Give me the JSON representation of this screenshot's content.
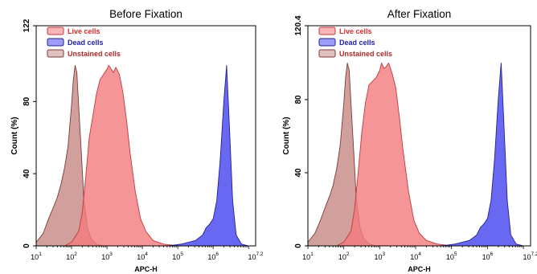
{
  "figure": {
    "colors": {
      "live": "#f47a7e",
      "live_stroke": "#c0393c",
      "dead": "#4d4df0",
      "dead_stroke": "#23238e",
      "unstained": "#c98f8c",
      "unstained_stroke": "#7b3b37",
      "legend_live_text": "#e02a2a",
      "legend_dead_text": "#2020b0",
      "legend_unstained_text": "#b02a2a"
    }
  },
  "chart_data": [
    {
      "type": "area",
      "title": "Before Fixation",
      "xlabel": "APC-H",
      "ylabel": "Count  (%)",
      "xscale": "log",
      "xlim": [
        1,
        7.2
      ],
      "ylim": [
        0,
        122
      ],
      "yticks": [
        {
          "value": 0,
          "label": "0"
        },
        {
          "value": 40,
          "label": "40"
        },
        {
          "value": 80,
          "label": "80"
        },
        {
          "value": 122,
          "label": "122"
        }
      ],
      "xticks": [
        {
          "value": 1,
          "base": "10",
          "exp": "1"
        },
        {
          "value": 2,
          "base": "10",
          "exp": "2"
        },
        {
          "value": 3,
          "base": "10",
          "exp": "3"
        },
        {
          "value": 4,
          "base": "10",
          "exp": "4"
        },
        {
          "value": 5,
          "base": "10",
          "exp": "5"
        },
        {
          "value": 6,
          "base": "10",
          "exp": "6"
        },
        {
          "value": 7.2,
          "base": "10",
          "exp": "7.2"
        }
      ],
      "legend": "top-left",
      "series": [
        {
          "name": "Unstained cells",
          "key": "unstained",
          "x": [
            1.0,
            1.2,
            1.35,
            1.5,
            1.6,
            1.7,
            1.8,
            1.9,
            2.0,
            2.05,
            2.1,
            2.15,
            2.2,
            2.28,
            2.35,
            2.45,
            2.55,
            2.7,
            2.9
          ],
          "y": [
            2,
            7,
            15,
            22,
            27,
            34,
            43,
            55,
            78,
            92,
            100,
            96,
            78,
            50,
            25,
            10,
            4,
            1,
            0
          ]
        },
        {
          "name": "Live cells",
          "key": "live",
          "x": [
            1.8,
            2.0,
            2.2,
            2.3,
            2.4,
            2.5,
            2.6,
            2.7,
            2.8,
            2.9,
            3.0,
            3.05,
            3.12,
            3.18,
            3.25,
            3.35,
            3.45,
            3.55,
            3.65,
            3.8,
            3.95,
            4.1,
            4.3,
            4.6,
            5.0
          ],
          "y": [
            0,
            2,
            8,
            18,
            38,
            60,
            72,
            84,
            92,
            95,
            98,
            100,
            98,
            96,
            99,
            95,
            85,
            70,
            52,
            30,
            15,
            8,
            3,
            1,
            0
          ]
        },
        {
          "name": "Dead cells",
          "key": "dead",
          "x": [
            4.7,
            4.9,
            5.1,
            5.3,
            5.5,
            5.7,
            5.8,
            5.9,
            6.0,
            6.1,
            6.2,
            6.3,
            6.38,
            6.45,
            6.55,
            6.65,
            6.8,
            7.0
          ],
          "y": [
            0,
            0.5,
            1,
            2,
            3,
            6,
            10,
            12,
            15,
            25,
            48,
            80,
            100,
            70,
            25,
            6,
            1,
            0
          ]
        }
      ],
      "legend_items": [
        {
          "label": "Live cells",
          "key": "live"
        },
        {
          "label": "Dead cells",
          "key": "dead"
        },
        {
          "label": "Unstained cells",
          "key": "unstained"
        }
      ]
    },
    {
      "type": "area",
      "title": "After Fixation",
      "xlabel": "APC-H",
      "ylabel": "Count  (%)",
      "xscale": "log",
      "xlim": [
        1,
        7.2
      ],
      "ylim": [
        0,
        120.4
      ],
      "yticks": [
        {
          "value": 0,
          "label": "0"
        },
        {
          "value": 40,
          "label": "40"
        },
        {
          "value": 80,
          "label": "80"
        },
        {
          "value": 120.4,
          "label": "120.4"
        }
      ],
      "xticks": [
        {
          "value": 1,
          "base": "10",
          "exp": "1"
        },
        {
          "value": 2,
          "base": "10",
          "exp": "2"
        },
        {
          "value": 3,
          "base": "10",
          "exp": "3"
        },
        {
          "value": 4,
          "base": "10",
          "exp": "4"
        },
        {
          "value": 5,
          "base": "10",
          "exp": "5"
        },
        {
          "value": 6,
          "base": "10",
          "exp": "6"
        },
        {
          "value": 7.2,
          "base": "10",
          "exp": "7.2"
        }
      ],
      "legend": "top-left",
      "series": [
        {
          "name": "Unstained cells",
          "key": "unstained",
          "x": [
            1.0,
            1.2,
            1.35,
            1.5,
            1.6,
            1.7,
            1.8,
            1.9,
            2.0,
            2.05,
            2.1,
            2.15,
            2.2,
            2.28,
            2.35,
            2.45,
            2.55,
            2.7,
            2.9
          ],
          "y": [
            2,
            7,
            14,
            22,
            27,
            33,
            42,
            55,
            78,
            92,
            100,
            96,
            78,
            50,
            25,
            10,
            4,
            1,
            0
          ]
        },
        {
          "name": "Live cells",
          "key": "live",
          "x": [
            1.8,
            2.0,
            2.2,
            2.3,
            2.4,
            2.5,
            2.6,
            2.7,
            2.8,
            2.9,
            3.0,
            3.05,
            3.12,
            3.18,
            3.25,
            3.35,
            3.45,
            3.55,
            3.65,
            3.8,
            3.95,
            4.1,
            4.3,
            4.6,
            5.0
          ],
          "y": [
            0,
            2,
            8,
            20,
            40,
            62,
            78,
            88,
            90,
            92,
            96,
            100,
            97,
            98,
            100,
            94,
            86,
            70,
            52,
            30,
            14,
            7,
            3,
            1,
            0
          ]
        },
        {
          "name": "Dead cells",
          "key": "dead",
          "x": [
            4.7,
            4.9,
            5.1,
            5.3,
            5.5,
            5.7,
            5.8,
            5.9,
            6.0,
            6.1,
            6.2,
            6.3,
            6.38,
            6.45,
            6.55,
            6.65,
            6.8,
            7.0
          ],
          "y": [
            0,
            0.5,
            1,
            2,
            3,
            6,
            10,
            12,
            15,
            25,
            48,
            80,
            100,
            70,
            25,
            6,
            1,
            0
          ]
        }
      ],
      "legend_items": [
        {
          "label": "Live cells",
          "key": "live"
        },
        {
          "label": "Dead cells",
          "key": "dead"
        },
        {
          "label": "Unstained cells",
          "key": "unstained"
        }
      ]
    }
  ]
}
